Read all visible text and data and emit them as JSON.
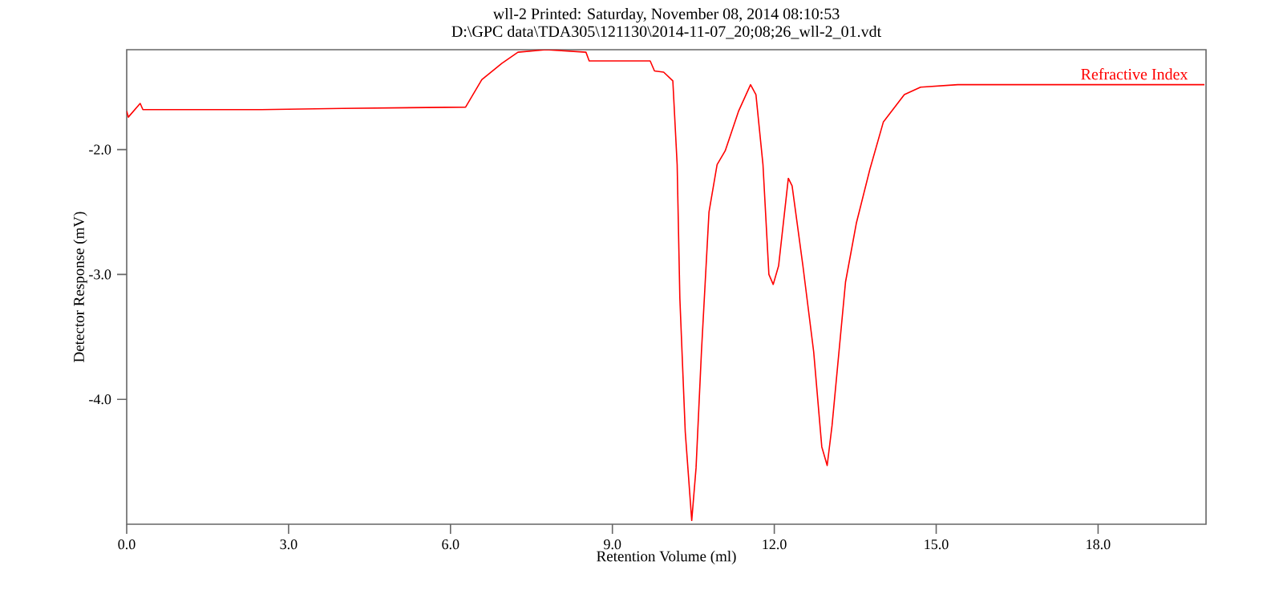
{
  "chart_data": {
    "type": "line",
    "title": "wll-2   Printed: Saturday, November 08, 2014 08:10:53",
    "subtitle": "D:\\GPC data\\TDA305\\121130\\2014-11-07_20;08;26_wll-2_01.vdt",
    "xlabel": "Retention Volume (ml)",
    "ylabel": "Detector Response (mV)",
    "xlim": [
      0,
      20
    ],
    "ylim": [
      -5.0,
      -1.2
    ],
    "xticks": [
      {
        "value": 0,
        "label": "0.0"
      },
      {
        "value": 3,
        "label": "3.0"
      },
      {
        "value": 6,
        "label": "6.0"
      },
      {
        "value": 9,
        "label": "9.0"
      },
      {
        "value": 12,
        "label": "12.0"
      },
      {
        "value": 15,
        "label": "15.0"
      },
      {
        "value": 18,
        "label": "18.0"
      }
    ],
    "yticks": [
      {
        "value": -2,
        "label": "-2.0"
      },
      {
        "value": -3,
        "label": "-3.0"
      },
      {
        "value": -4,
        "label": "-4.0"
      }
    ],
    "grid": false,
    "legend": "top right",
    "series": [
      {
        "name": "Refractive Index",
        "color": "#ff0000",
        "x": [
          0.0,
          0.03,
          0.25,
          0.3,
          2.5,
          4.0,
          6.28,
          6.58,
          6.95,
          7.25,
          7.77,
          8.51,
          8.57,
          9.7,
          9.78,
          9.95,
          10.12,
          10.2,
          10.25,
          10.35,
          10.47,
          10.55,
          10.65,
          10.79,
          10.94,
          11.09,
          11.34,
          11.56,
          11.66,
          11.79,
          11.9,
          11.98,
          12.08,
          12.26,
          12.33,
          12.53,
          12.73,
          12.88,
          12.98,
          13.07,
          13.32,
          13.52,
          13.77,
          14.02,
          14.41,
          14.71,
          15.4,
          17.0,
          19.97
        ],
        "values": [
          -1.69,
          -1.74,
          -1.63,
          -1.68,
          -1.68,
          -1.67,
          -1.66,
          -1.44,
          -1.31,
          -1.22,
          -1.2,
          -1.22,
          -1.29,
          -1.29,
          -1.37,
          -1.38,
          -1.45,
          -2.12,
          -3.19,
          -4.26,
          -4.97,
          -4.55,
          -3.62,
          -2.5,
          -2.12,
          -2.01,
          -1.69,
          -1.48,
          -1.56,
          -2.12,
          -3.0,
          -3.08,
          -2.93,
          -2.23,
          -2.29,
          -2.93,
          -3.62,
          -4.38,
          -4.53,
          -4.21,
          -3.06,
          -2.59,
          -2.16,
          -1.78,
          -1.56,
          -1.5,
          -1.48,
          -1.48,
          -1.48
        ]
      }
    ]
  }
}
